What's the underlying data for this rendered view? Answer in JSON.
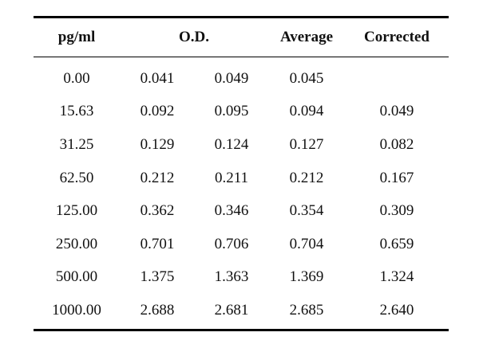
{
  "table": {
    "headers": {
      "concentration": "pg/ml",
      "od": "O.D.",
      "average": "Average",
      "corrected": "Corrected"
    },
    "rows": [
      {
        "conc": "0.00",
        "od1": "0.041",
        "od2": "0.049",
        "avg": "0.045",
        "corr": ""
      },
      {
        "conc": "15.63",
        "od1": "0.092",
        "od2": "0.095",
        "avg": "0.094",
        "corr": "0.049"
      },
      {
        "conc": "31.25",
        "od1": "0.129",
        "od2": "0.124",
        "avg": "0.127",
        "corr": "0.082"
      },
      {
        "conc": "62.50",
        "od1": "0.212",
        "od2": "0.211",
        "avg": "0.212",
        "corr": "0.167"
      },
      {
        "conc": "125.00",
        "od1": "0.362",
        "od2": "0.346",
        "avg": "0.354",
        "corr": "0.309"
      },
      {
        "conc": "250.00",
        "od1": "0.701",
        "od2": "0.706",
        "avg": "0.704",
        "corr": "0.659"
      },
      {
        "conc": "500.00",
        "od1": "1.375",
        "od2": "1.363",
        "avg": "1.369",
        "corr": "1.324"
      },
      {
        "conc": "1000.00",
        "od1": "2.688",
        "od2": "2.681",
        "avg": "2.685",
        "corr": "2.640"
      }
    ]
  }
}
